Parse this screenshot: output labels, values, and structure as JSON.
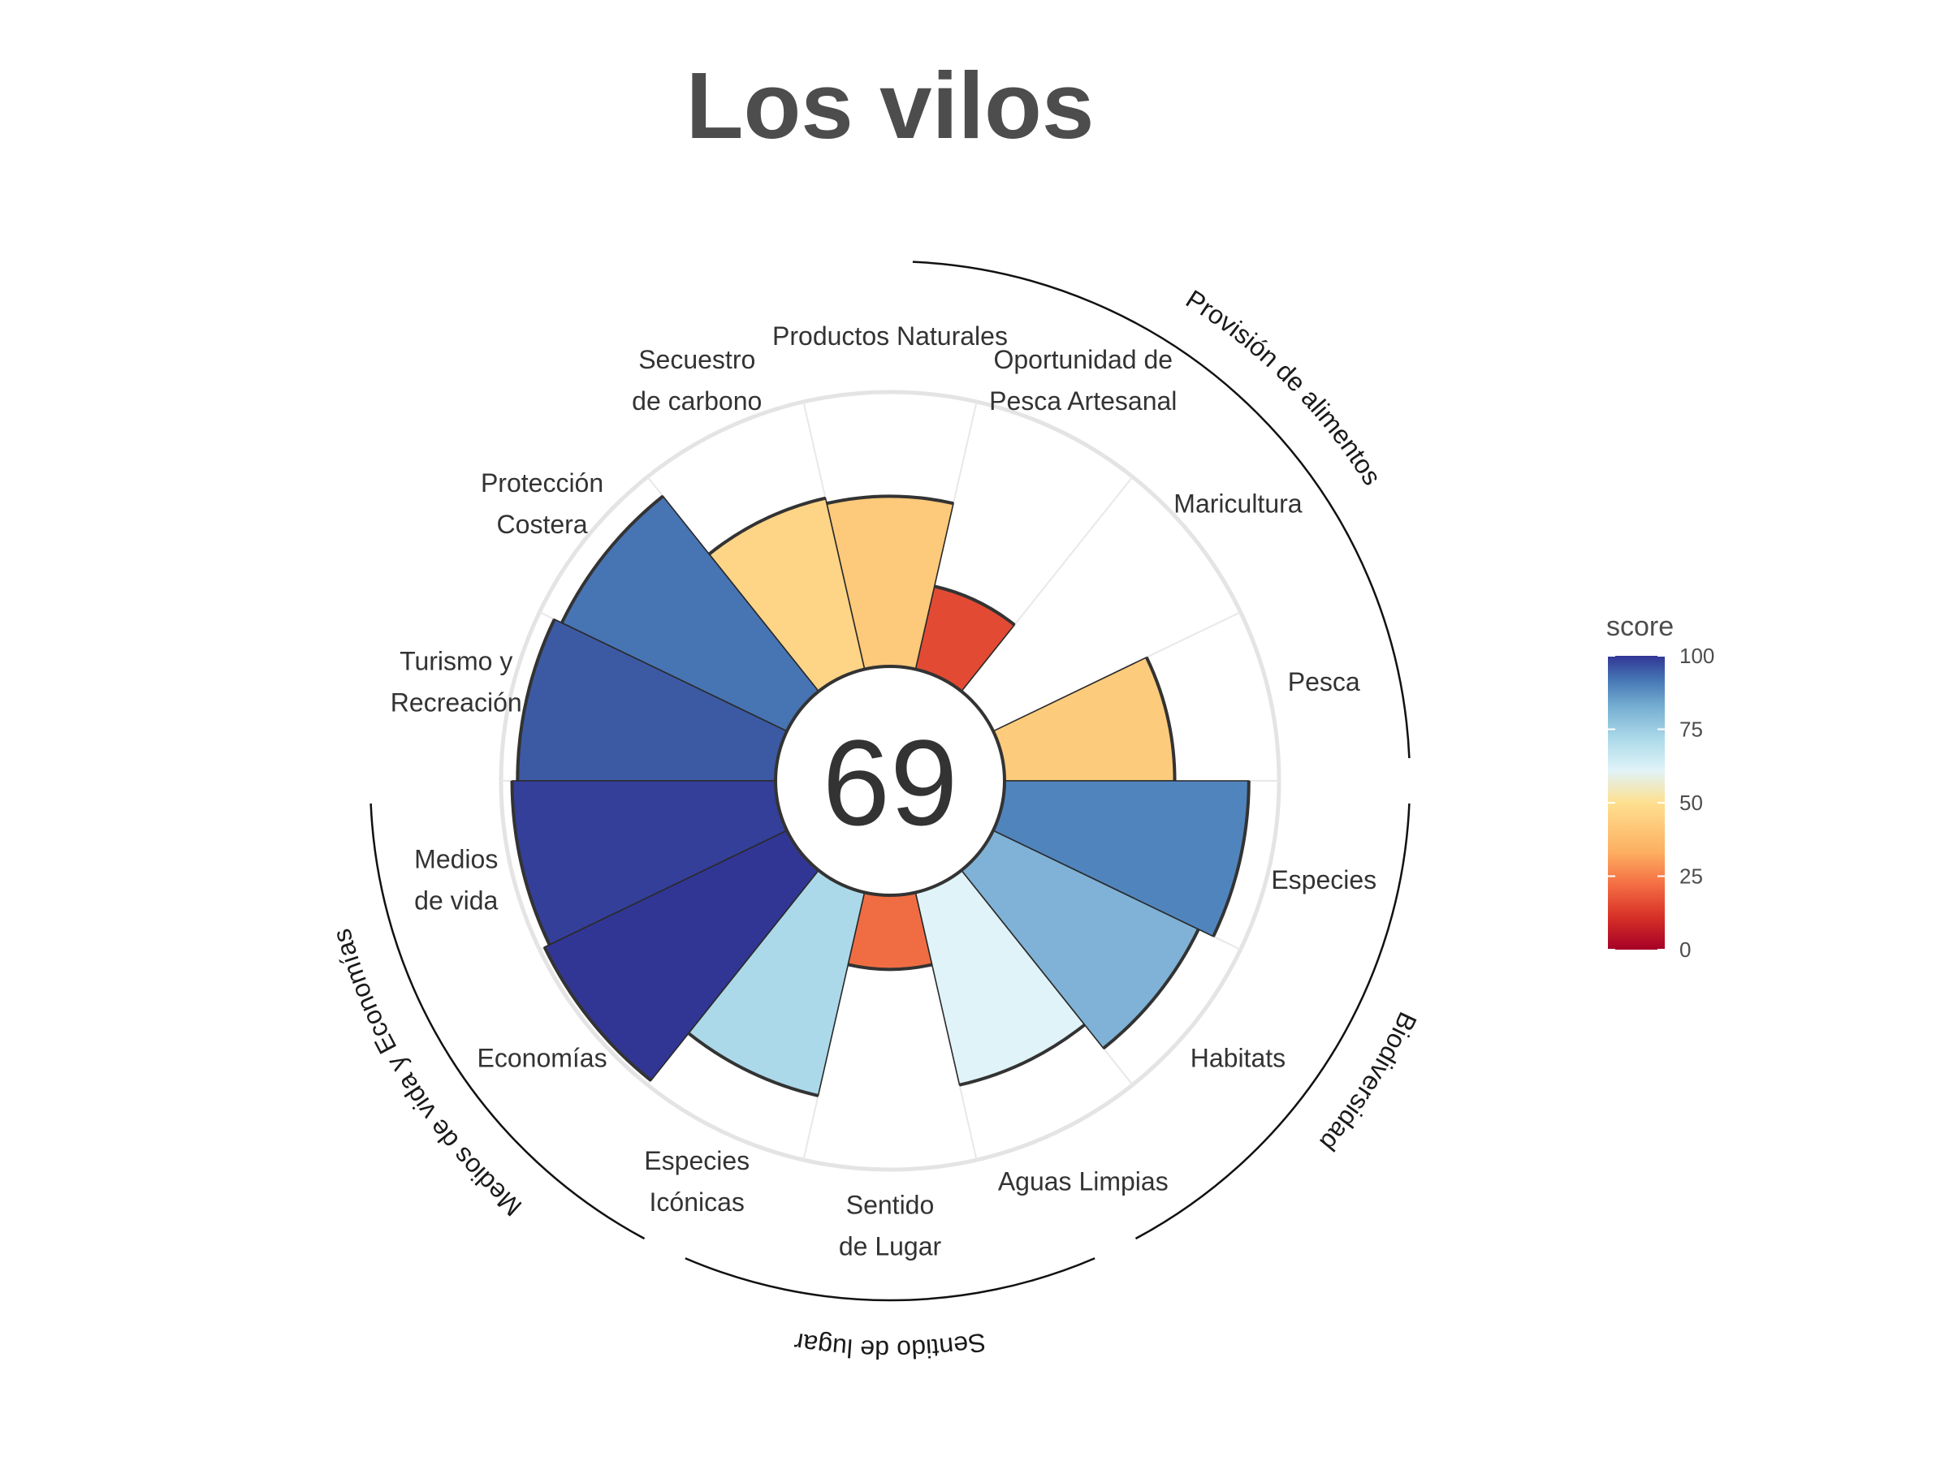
{
  "chart_data": {
    "type": "polar-bar",
    "title": "Los vilos",
    "center_score": "69",
    "rlim": [
      0,
      100
    ],
    "grid": true,
    "color_scale": [
      "#a50026",
      "#d73027",
      "#f46d43",
      "#fdae61",
      "#fee090",
      "#e0f3f8",
      "#abd9e9",
      "#74add1",
      "#4575b4",
      "#313695"
    ],
    "categories": [
      {
        "lines": [
          "Pesca"
        ],
        "value": 62,
        "color": "#fdcb7c"
      },
      {
        "lines": [
          "Maricultura"
        ],
        "value": null,
        "color": null
      },
      {
        "lines": [
          "Oportunidad de",
          "Pesca Artesanal"
        ],
        "value": 31,
        "color": "#e34a33"
      },
      {
        "lines": [
          "Productos Naturales"
        ],
        "value": 62,
        "color": "#fdc97a"
      },
      {
        "lines": [
          "Secuestro",
          "de carbono"
        ],
        "value": 64,
        "color": "#fed487"
      },
      {
        "lines": [
          "Protección",
          "Costera"
        ],
        "value": 91,
        "color": "#4774b3"
      },
      {
        "lines": [
          "Turismo y",
          "Recreación"
        ],
        "value": 94,
        "color": "#3c5aa4"
      },
      {
        "lines": [
          "Medios",
          "de vida"
        ],
        "value": 96,
        "color": "#343f99"
      },
      {
        "lines": [
          "Economías"
        ],
        "value": 98,
        "color": "#313695"
      },
      {
        "lines": [
          "Especies",
          "Icónicas"
        ],
        "value": 76,
        "color": "#abd9e9"
      },
      {
        "lines": [
          "Sentido",
          "de Lugar"
        ],
        "value": 27,
        "color": "#f06d43"
      },
      {
        "lines": [
          "Aguas Limpias"
        ],
        "value": 72,
        "color": "#e0f3f8"
      },
      {
        "lines": [
          "Habitats"
        ],
        "value": 83,
        "color": "#7fb2d6"
      },
      {
        "lines": [
          "Especies"
        ],
        "value": 89,
        "color": "#5084bd"
      }
    ],
    "groups": [
      {
        "label": "Provisión de alimentos"
      },
      {
        "label": "Biodiversidad"
      },
      {
        "label": "Sentido de lugar"
      },
      {
        "label": "Medios de vida y Economías"
      }
    ],
    "legend": {
      "title": "score",
      "ticks": [
        "0",
        "25",
        "50",
        "75",
        "100"
      ],
      "position": "right"
    }
  }
}
